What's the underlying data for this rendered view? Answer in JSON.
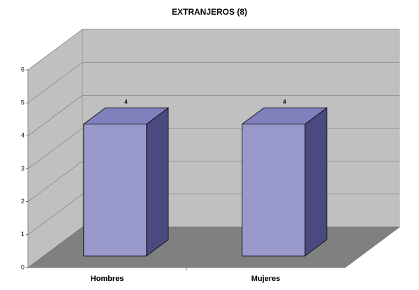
{
  "chart_data": {
    "type": "bar",
    "title": "EXTRANJEROS (8)",
    "categories": [
      "Hombres",
      "Mujeres"
    ],
    "values": [
      4,
      4
    ],
    "color": "#9999cc",
    "ylim": [
      0,
      6
    ],
    "yticks": [
      0,
      1,
      2,
      3,
      4,
      5,
      6
    ],
    "grid": true
  }
}
